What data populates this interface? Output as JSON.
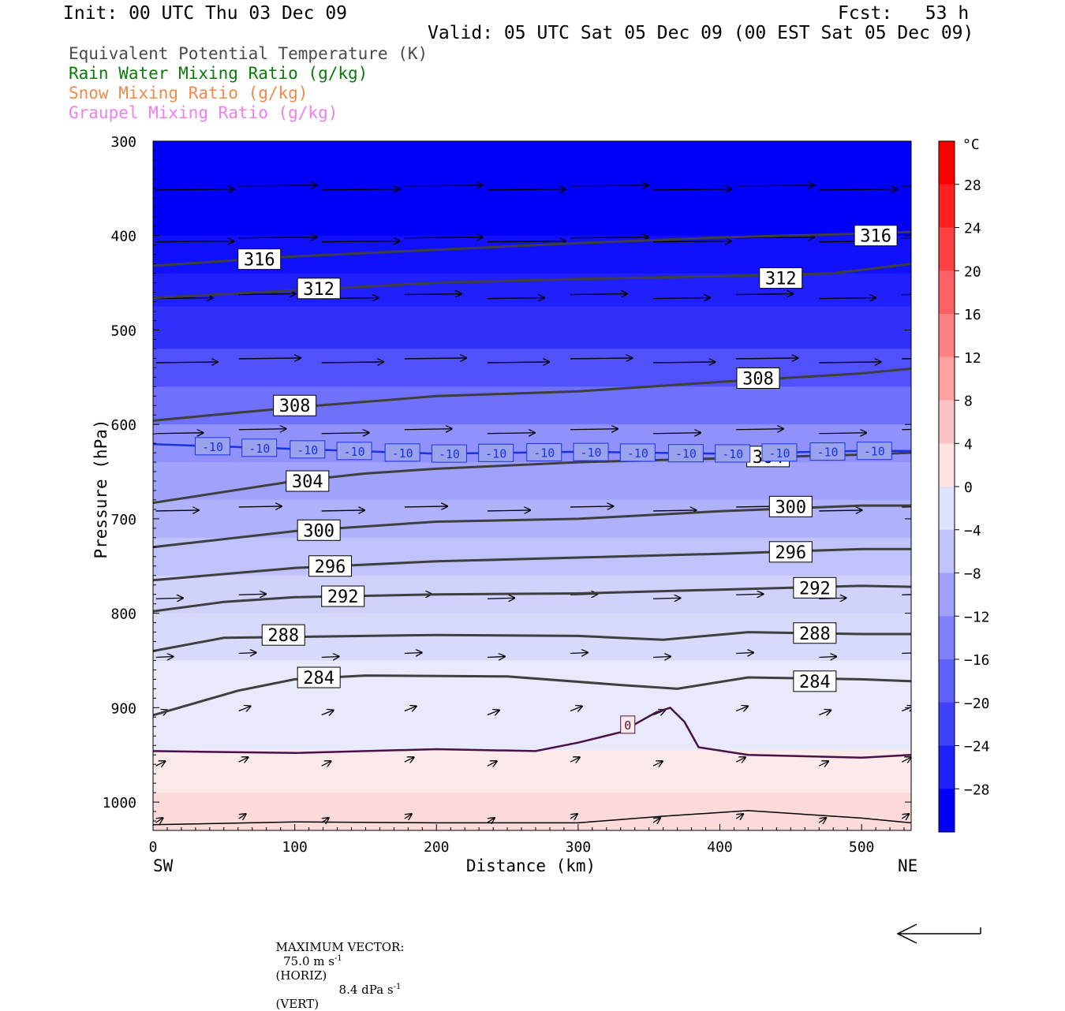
{
  "header": {
    "init": "Init: 00 UTC Thu 03 Dec 09",
    "fcst": "Fcst:   53 h",
    "valid": "Valid: 05 UTC Sat 05 Dec 09 (00 EST Sat 05 Dec 09)"
  },
  "legend": [
    {
      "label": "Equivalent Potential Temperature (K)",
      "color": "#4a4a4a"
    },
    {
      "label": "Rain Water Mixing Ratio (g/kg)",
      "color": "#0a7a0a"
    },
    {
      "label": "Snow Mixing Ratio (g/kg)",
      "color": "#f08a4a"
    },
    {
      "label": "Graupel Mixing Ratio (g/kg)",
      "color": "#ef7ef0"
    }
  ],
  "footer": {
    "max_vector_label": "MAXIMUM VECTOR:",
    "horiz": "75.0 m s",
    "horiz_unit": "(HORIZ)",
    "vert": "8.4 dPa s",
    "vert_unit": "(VERT)",
    "exp": "-1"
  },
  "chart_data": {
    "type": "cross-section",
    "xlabel": "Distance (km)",
    "ylabel": "Pressure (hPa)",
    "xlim": [
      0,
      535
    ],
    "ylim": [
      1030,
      300
    ],
    "x_ticks": [
      0,
      100,
      200,
      300,
      400,
      500
    ],
    "y_ticks": [
      300,
      400,
      500,
      600,
      700,
      800,
      900,
      1000
    ],
    "x_end_labels": {
      "left": "SW",
      "right": "NE"
    },
    "colorbar": {
      "unit": "°C",
      "ticks": [
        28,
        24,
        20,
        16,
        12,
        8,
        4,
        0,
        -4,
        -8,
        -12,
        -16,
        -20,
        -24,
        -28
      ],
      "range": [
        -32,
        32
      ]
    },
    "theta_e": [
      {
        "value": 316,
        "x": [
          0,
          100,
          200,
          300,
          400,
          500,
          535
        ],
        "p": [
          432,
          422,
          415,
          408,
          402,
          398,
          396
        ]
      },
      {
        "value": 312,
        "x": [
          0,
          100,
          200,
          300,
          400,
          480,
          535
        ],
        "p": [
          466,
          458,
          450,
          446,
          443,
          440,
          430
        ]
      },
      {
        "value": 308,
        "x": [
          0,
          100,
          200,
          300,
          400,
          500,
          535
        ],
        "p": [
          596,
          582,
          570,
          565,
          555,
          546,
          541
        ]
      },
      {
        "value": 304,
        "x": [
          0,
          100,
          150,
          200,
          300,
          400,
          500,
          535
        ],
        "p": [
          683,
          660,
          652,
          647,
          640,
          636,
          632,
          630
        ]
      },
      {
        "value": 300,
        "x": [
          0,
          100,
          200,
          300,
          400,
          500,
          535
        ],
        "p": [
          730,
          713,
          703,
          700,
          692,
          686,
          686
        ]
      },
      {
        "value": 296,
        "x": [
          0,
          100,
          200,
          300,
          400,
          500,
          535
        ],
        "p": [
          765,
          752,
          745,
          741,
          737,
          732,
          732
        ]
      },
      {
        "value": 292,
        "x": [
          0,
          50,
          100,
          200,
          300,
          400,
          500,
          535
        ],
        "p": [
          798,
          788,
          783,
          780,
          779,
          775,
          771,
          772
        ]
      },
      {
        "value": 288,
        "x": [
          0,
          50,
          100,
          200,
          300,
          360,
          420,
          500,
          535
        ],
        "p": [
          840,
          826,
          825,
          823,
          824,
          828,
          820,
          822,
          822
        ]
      },
      {
        "value": 284,
        "x": [
          0,
          60,
          100,
          150,
          250,
          330,
          370,
          420,
          500,
          535
        ],
        "p": [
          908,
          882,
          870,
          866,
          867,
          876,
          880,
          868,
          870,
          872
        ]
      }
    ],
    "temperature_contours": [
      {
        "value": -10,
        "x": [
          0,
          100,
          200,
          300,
          400,
          500,
          535
        ],
        "p": [
          621,
          626,
          631,
          629,
          631,
          628,
          628
        ]
      },
      {
        "value": 0,
        "x": [
          0,
          100,
          200,
          270,
          300,
          330,
          355,
          365,
          375,
          385,
          420,
          500,
          535
        ],
        "p": [
          946,
          948,
          944,
          946,
          937,
          926,
          905,
          900,
          915,
          942,
          950,
          953,
          950
        ]
      }
    ],
    "theta_e_labels": [
      {
        "text": "316",
        "x": 75,
        "p": 425
      },
      {
        "text": "316",
        "x": 510,
        "p": 400
      },
      {
        "text": "312",
        "x": 117,
        "p": 456
      },
      {
        "text": "312",
        "x": 443,
        "p": 445
      },
      {
        "text": "308",
        "x": 100,
        "p": 580
      },
      {
        "text": "308",
        "x": 427,
        "p": 551
      },
      {
        "text": "304",
        "x": 109,
        "p": 660
      },
      {
        "text": "304",
        "x": 434,
        "p": 634
      },
      {
        "text": "300",
        "x": 117,
        "p": 712
      },
      {
        "text": "300",
        "x": 450,
        "p": 687
      },
      {
        "text": "296",
        "x": 125,
        "p": 750
      },
      {
        "text": "296",
        "x": 450,
        "p": 735
      },
      {
        "text": "292",
        "x": 134,
        "p": 782
      },
      {
        "text": "292",
        "x": 467,
        "p": 773
      },
      {
        "text": "288",
        "x": 92,
        "p": 823
      },
      {
        "text": "288",
        "x": 467,
        "p": 821
      },
      {
        "text": "284",
        "x": 117,
        "p": 868
      },
      {
        "text": "284",
        "x": 467,
        "p": 872
      }
    ],
    "temp_labels": {
      "minus10": {
        "text": "-10",
        "x": [
          42,
          75,
          109,
          142,
          176,
          209,
          242,
          276,
          309,
          342,
          376,
          409,
          442,
          476,
          509
        ],
        "p": 624
      },
      "zero": {
        "text": "0",
        "x": 335,
        "p": 918
      }
    },
    "wind_rows": [
      {
        "p": 350,
        "u": 1.0
      },
      {
        "p": 405,
        "u": 1.0
      },
      {
        "p": 465,
        "u": 0.8
      },
      {
        "p": 533,
        "u": 0.85
      },
      {
        "p": 608,
        "u": 0.7
      },
      {
        "p": 690,
        "u": 0.65
      },
      {
        "p": 783,
        "u": 0.45
      },
      {
        "p": 845,
        "u": 0.3
      },
      {
        "p": 906,
        "u": 0.2
      },
      {
        "p": 960,
        "u": 0.15
      },
      {
        "p": 1020,
        "u": 0.1
      }
    ]
  }
}
